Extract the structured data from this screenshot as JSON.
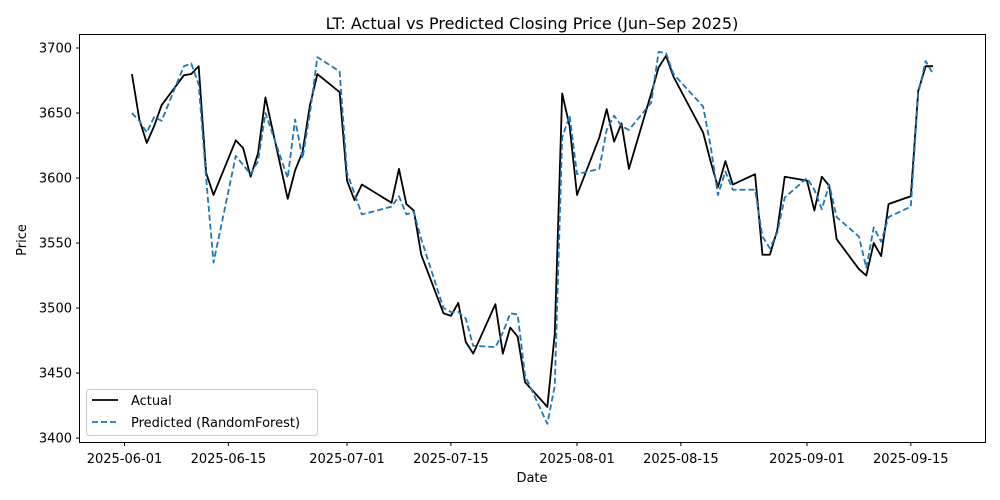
{
  "chart_data": {
    "type": "line",
    "title": "LT: Actual vs Predicted Closing Price (Jun–Sep 2025)",
    "xlabel": "Date",
    "ylabel": "Price",
    "xlim": [
      "2025-05-26",
      "2025-09-25"
    ],
    "ylim": [
      3397,
      3710
    ],
    "x_ticks": [
      "2025-06-01",
      "2025-06-15",
      "2025-07-01",
      "2025-07-15",
      "2025-08-01",
      "2025-08-15",
      "2025-09-01",
      "2025-09-15"
    ],
    "y_ticks": [
      3400,
      3450,
      3500,
      3550,
      3600,
      3650,
      3700
    ],
    "grid": false,
    "legend_position": "lower-left",
    "series": [
      {
        "name": "Actual",
        "color": "#000000",
        "style": "solid",
        "points": [
          [
            "2025-06-02",
            3680
          ],
          [
            "2025-06-03",
            3645
          ],
          [
            "2025-06-04",
            3627
          ],
          [
            "2025-06-05",
            3640
          ],
          [
            "2025-06-06",
            3656
          ],
          [
            "2025-06-09",
            3679
          ],
          [
            "2025-06-10",
            3680
          ],
          [
            "2025-06-11",
            3686
          ],
          [
            "2025-06-12",
            3604
          ],
          [
            "2025-06-13",
            3587
          ],
          [
            "2025-06-16",
            3629
          ],
          [
            "2025-06-17",
            3623
          ],
          [
            "2025-06-18",
            3601
          ],
          [
            "2025-06-19",
            3619
          ],
          [
            "2025-06-20",
            3662
          ],
          [
            "2025-06-23",
            3584
          ],
          [
            "2025-06-24",
            3606
          ],
          [
            "2025-06-25",
            3620
          ],
          [
            "2025-06-26",
            3656
          ],
          [
            "2025-06-27",
            3680
          ],
          [
            "2025-06-30",
            3666
          ],
          [
            "2025-07-01",
            3598
          ],
          [
            "2025-07-02",
            3583
          ],
          [
            "2025-07-03",
            3595
          ],
          [
            "2025-07-07",
            3581
          ],
          [
            "2025-07-08",
            3607
          ],
          [
            "2025-07-09",
            3580
          ],
          [
            "2025-07-10",
            3575
          ],
          [
            "2025-07-11",
            3541
          ],
          [
            "2025-07-14",
            3496
          ],
          [
            "2025-07-15",
            3494
          ],
          [
            "2025-07-16",
            3504
          ],
          [
            "2025-07-17",
            3474
          ],
          [
            "2025-07-18",
            3465
          ],
          [
            "2025-07-21",
            3503
          ],
          [
            "2025-07-22",
            3465
          ],
          [
            "2025-07-23",
            3485
          ],
          [
            "2025-07-24",
            3478
          ],
          [
            "2025-07-25",
            3443
          ],
          [
            "2025-07-28",
            3424
          ],
          [
            "2025-07-29",
            3480
          ],
          [
            "2025-07-30",
            3665
          ],
          [
            "2025-07-31",
            3640
          ],
          [
            "2025-08-01",
            3587
          ],
          [
            "2025-08-04",
            3631
          ],
          [
            "2025-08-05",
            3653
          ],
          [
            "2025-08-06",
            3628
          ],
          [
            "2025-08-07",
            3642
          ],
          [
            "2025-08-08",
            3607
          ],
          [
            "2025-08-11",
            3665
          ],
          [
            "2025-08-12",
            3685
          ],
          [
            "2025-08-13",
            3694
          ],
          [
            "2025-08-14",
            3678
          ],
          [
            "2025-08-18",
            3635
          ],
          [
            "2025-08-19",
            3613
          ],
          [
            "2025-08-20",
            3593
          ],
          [
            "2025-08-21",
            3613
          ],
          [
            "2025-08-22",
            3595
          ],
          [
            "2025-08-25",
            3603
          ],
          [
            "2025-08-26",
            3541
          ],
          [
            "2025-08-27",
            3541
          ],
          [
            "2025-08-28",
            3560
          ],
          [
            "2025-08-29",
            3601
          ],
          [
            "2025-09-01",
            3598
          ],
          [
            "2025-09-02",
            3575
          ],
          [
            "2025-09-03",
            3601
          ],
          [
            "2025-09-04",
            3594
          ],
          [
            "2025-09-05",
            3553
          ],
          [
            "2025-09-08",
            3530
          ],
          [
            "2025-09-09",
            3525
          ],
          [
            "2025-09-10",
            3550
          ],
          [
            "2025-09-11",
            3540
          ],
          [
            "2025-09-12",
            3580
          ],
          [
            "2025-09-15",
            3586
          ],
          [
            "2025-09-16",
            3667
          ],
          [
            "2025-09-17",
            3686
          ],
          [
            "2025-09-18",
            3686
          ]
        ]
      },
      {
        "name": "Predicted (RandomForest)",
        "color": "#1f77b4",
        "style": "dashed",
        "points": [
          [
            "2025-06-02",
            3650
          ],
          [
            "2025-06-03",
            3644
          ],
          [
            "2025-06-04",
            3635
          ],
          [
            "2025-06-05",
            3647
          ],
          [
            "2025-06-06",
            3644
          ],
          [
            "2025-06-09",
            3686
          ],
          [
            "2025-06-10",
            3688
          ],
          [
            "2025-06-11",
            3672
          ],
          [
            "2025-06-12",
            3600
          ],
          [
            "2025-06-13",
            3535
          ],
          [
            "2025-06-16",
            3617
          ],
          [
            "2025-06-17",
            3610
          ],
          [
            "2025-06-18",
            3603
          ],
          [
            "2025-06-19",
            3613
          ],
          [
            "2025-06-20",
            3650
          ],
          [
            "2025-06-23",
            3600
          ],
          [
            "2025-06-24",
            3645
          ],
          [
            "2025-06-25",
            3615
          ],
          [
            "2025-06-26",
            3650
          ],
          [
            "2025-06-27",
            3693
          ],
          [
            "2025-06-30",
            3682
          ],
          [
            "2025-07-01",
            3604
          ],
          [
            "2025-07-02",
            3588
          ],
          [
            "2025-07-03",
            3572
          ],
          [
            "2025-07-07",
            3578
          ],
          [
            "2025-07-08",
            3586
          ],
          [
            "2025-07-09",
            3572
          ],
          [
            "2025-07-10",
            3574
          ],
          [
            "2025-07-11",
            3553
          ],
          [
            "2025-07-14",
            3500
          ],
          [
            "2025-07-15",
            3497
          ],
          [
            "2025-07-16",
            3497
          ],
          [
            "2025-07-17",
            3492
          ],
          [
            "2025-07-18",
            3471
          ],
          [
            "2025-07-21",
            3470
          ],
          [
            "2025-07-22",
            3481
          ],
          [
            "2025-07-23",
            3496
          ],
          [
            "2025-07-24",
            3495
          ],
          [
            "2025-07-25",
            3448
          ],
          [
            "2025-07-28",
            3411
          ],
          [
            "2025-07-29",
            3440
          ],
          [
            "2025-07-30",
            3631
          ],
          [
            "2025-07-31",
            3648
          ],
          [
            "2025-08-01",
            3603
          ],
          [
            "2025-08-04",
            3607
          ],
          [
            "2025-08-05",
            3637
          ],
          [
            "2025-08-06",
            3648
          ],
          [
            "2025-08-07",
            3640
          ],
          [
            "2025-08-08",
            3637
          ],
          [
            "2025-08-11",
            3658
          ],
          [
            "2025-08-12",
            3697
          ],
          [
            "2025-08-13",
            3696
          ],
          [
            "2025-08-14",
            3680
          ],
          [
            "2025-08-18",
            3655
          ],
          [
            "2025-08-19",
            3625
          ],
          [
            "2025-08-20",
            3587
          ],
          [
            "2025-08-21",
            3605
          ],
          [
            "2025-08-22",
            3591
          ],
          [
            "2025-08-25",
            3591
          ],
          [
            "2025-08-26",
            3555
          ],
          [
            "2025-08-27",
            3546
          ],
          [
            "2025-08-28",
            3558
          ],
          [
            "2025-08-29",
            3585
          ],
          [
            "2025-09-01",
            3600
          ],
          [
            "2025-09-02",
            3591
          ],
          [
            "2025-09-03",
            3576
          ],
          [
            "2025-09-04",
            3595
          ],
          [
            "2025-09-05",
            3570
          ],
          [
            "2025-09-08",
            3555
          ],
          [
            "2025-09-09",
            3531
          ],
          [
            "2025-09-10",
            3562
          ],
          [
            "2025-09-11",
            3551
          ],
          [
            "2025-09-12",
            3570
          ],
          [
            "2025-09-15",
            3578
          ],
          [
            "2025-09-16",
            3665
          ],
          [
            "2025-09-17",
            3690
          ],
          [
            "2025-09-18",
            3680
          ]
        ]
      }
    ]
  }
}
